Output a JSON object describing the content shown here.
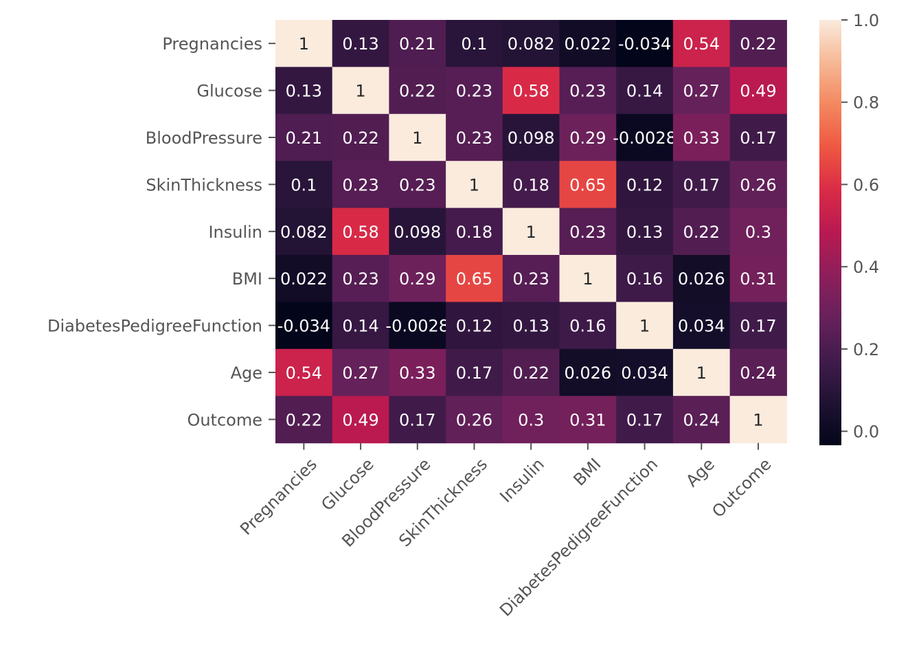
{
  "chart_data": {
    "type": "heatmap",
    "labels": [
      "Pregnancies",
      "Glucose",
      "BloodPressure",
      "SkinThickness",
      "Insulin",
      "BMI",
      "DiabetesPedigreeFunction",
      "Age",
      "Outcome"
    ],
    "values": [
      [
        1,
        0.13,
        0.21,
        0.1,
        0.082,
        0.022,
        -0.034,
        0.54,
        0.22
      ],
      [
        0.13,
        1,
        0.22,
        0.23,
        0.58,
        0.23,
        0.14,
        0.27,
        0.49
      ],
      [
        0.21,
        0.22,
        1,
        0.23,
        0.098,
        0.29,
        -0.0028,
        0.33,
        0.17
      ],
      [
        0.1,
        0.23,
        0.23,
        1,
        0.18,
        0.65,
        0.12,
        0.17,
        0.26
      ],
      [
        0.082,
        0.58,
        0.098,
        0.18,
        1,
        0.23,
        0.13,
        0.22,
        0.3
      ],
      [
        0.022,
        0.23,
        0.29,
        0.65,
        0.23,
        1,
        0.16,
        0.026,
        0.31
      ],
      [
        -0.034,
        0.14,
        -0.0028,
        0.12,
        0.13,
        0.16,
        1,
        0.034,
        0.17
      ],
      [
        0.54,
        0.27,
        0.33,
        0.17,
        0.22,
        0.026,
        0.034,
        1,
        0.24
      ],
      [
        0.22,
        0.49,
        0.17,
        0.26,
        0.3,
        0.31,
        0.17,
        0.24,
        1
      ]
    ],
    "colorbar": {
      "range": [
        -0.034,
        1.0
      ],
      "ticks": [
        "0.0",
        "0.2",
        "0.4",
        "0.6",
        "0.8",
        "1.0"
      ],
      "tick_values": [
        0,
        0.2,
        0.4,
        0.6,
        0.8,
        1.0
      ],
      "colormap": "rocket",
      "placement": "right"
    },
    "annotated": true,
    "grid": false,
    "xtick_rotation": 45
  }
}
